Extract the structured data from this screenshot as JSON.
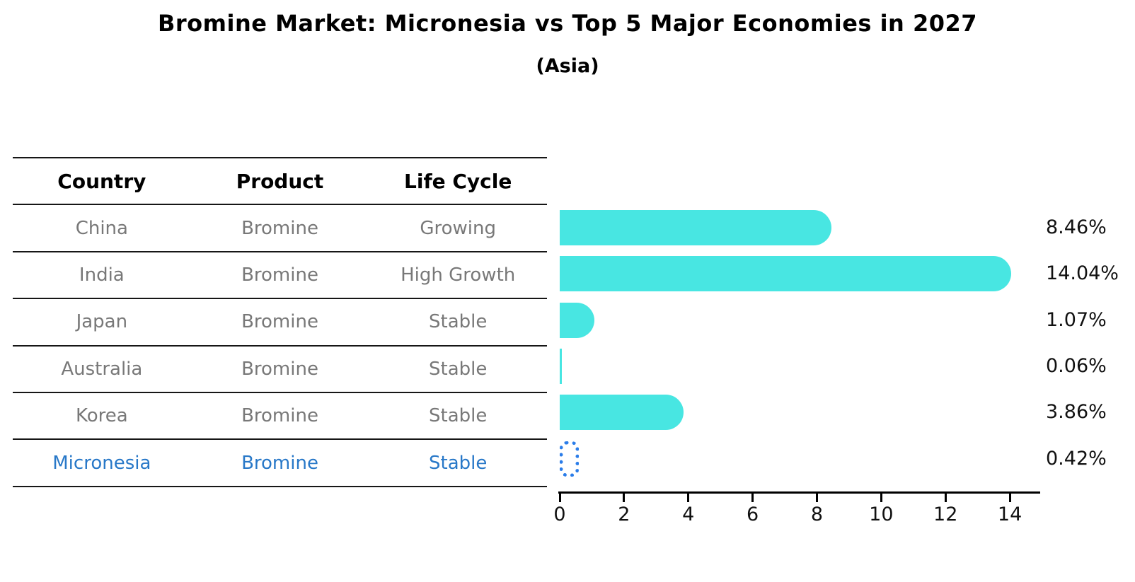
{
  "title": "Bromine Market: Micronesia vs Top 5 Major Economies in 2027",
  "subtitle": "(Asia)",
  "table": {
    "headers": [
      "Country",
      "Product",
      "Life Cycle"
    ],
    "rows": [
      {
        "country": "China",
        "product": "Bromine",
        "life_cycle": "Growing",
        "highlighted": false
      },
      {
        "country": "India",
        "product": "Bromine",
        "life_cycle": "High Growth",
        "highlighted": false
      },
      {
        "country": "Japan",
        "product": "Bromine",
        "life_cycle": "Stable",
        "highlighted": false
      },
      {
        "country": "Australia",
        "product": "Bromine",
        "life_cycle": "Stable",
        "highlighted": false
      },
      {
        "country": "Korea",
        "product": "Bromine",
        "life_cycle": "Stable",
        "highlighted": false
      },
      {
        "country": "Micronesia",
        "product": "Bromine",
        "life_cycle": "Stable",
        "highlighted": true
      }
    ]
  },
  "chart_data": {
    "type": "bar",
    "orientation": "horizontal",
    "title": "Bromine Market: Micronesia vs Top 5 Major Economies in 2027",
    "subtitle": "(Asia)",
    "categories": [
      "China",
      "India",
      "Japan",
      "Australia",
      "Korea",
      "Micronesia"
    ],
    "values": [
      8.46,
      14.04,
      1.07,
      0.06,
      3.86,
      0.42
    ],
    "value_labels": [
      "8.46%",
      "14.04%",
      "1.07%",
      "0.06%",
      "3.86%",
      "0.42%"
    ],
    "xticks": [
      0,
      2,
      4,
      6,
      8,
      10,
      12,
      14
    ],
    "xlim": [
      0,
      14.9
    ],
    "grid": false,
    "legend": false,
    "bar_color": "#48e6e2",
    "highlight_bar_color": "#2b7de9",
    "highlight_index": 5
  },
  "colors": {
    "header_text": "#000000",
    "row_text": "#787878",
    "highlight_text": "#2878c8",
    "axis": "#000000"
  }
}
